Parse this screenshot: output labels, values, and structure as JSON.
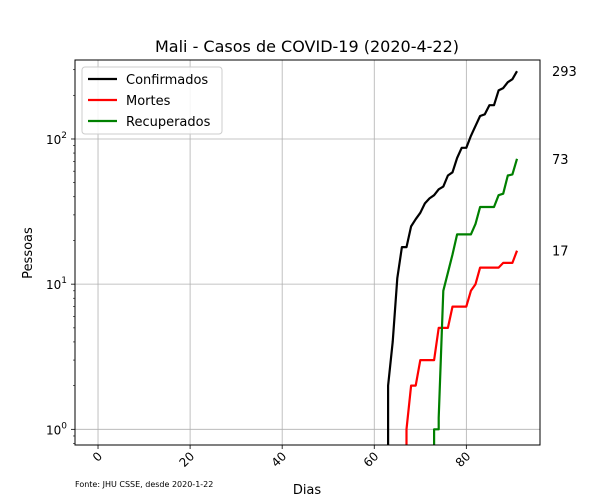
{
  "chart_data": {
    "type": "line",
    "title": "Mali - Casos de COVID-19 (2020-4-22)",
    "xlabel": "Dias",
    "ylabel": "Pessoas",
    "yscale": "log",
    "xlim": [
      -5,
      96
    ],
    "ylim": [
      0.78,
      350
    ],
    "grid": true,
    "legend_position": "top-left",
    "x_ticks": [
      0,
      20,
      40,
      60,
      80
    ],
    "y_ticks": [
      1,
      10,
      100
    ],
    "y_tick_labels": [
      {
        "base": "10",
        "exp": "0"
      },
      {
        "base": "10",
        "exp": "1"
      },
      {
        "base": "10",
        "exp": "2"
      }
    ],
    "source_note": "Fonte: JHU CSSE, desde 2020-1-22",
    "series": [
      {
        "name": "Confirmados",
        "color": "#000000",
        "final_label": "293",
        "x": [
          63,
          63,
          64,
          65,
          66,
          67,
          68,
          69,
          70,
          71,
          72,
          73,
          74,
          75,
          76,
          77,
          78,
          79,
          80,
          81,
          82,
          83,
          84,
          85,
          86,
          87,
          88,
          89,
          90,
          91
        ],
        "y": [
          0.78,
          2,
          4,
          11,
          18,
          18,
          25,
          28,
          31,
          36,
          39,
          41,
          45,
          47,
          56,
          59,
          74,
          87,
          87,
          105,
          123,
          144,
          148,
          171,
          171,
          216,
          224,
          246,
          258,
          293
        ]
      },
      {
        "name": "Mortes",
        "color": "#ff0000",
        "final_label": "17",
        "x": [
          67,
          67,
          68,
          69,
          70,
          71,
          72,
          73,
          74,
          75,
          76,
          77,
          78,
          79,
          80,
          81,
          82,
          83,
          84,
          85,
          86,
          87,
          88,
          89,
          90,
          91
        ],
        "y": [
          0.78,
          1,
          2,
          2,
          3,
          3,
          3,
          3,
          5,
          5,
          5,
          7,
          7,
          7,
          7,
          9,
          10,
          13,
          13,
          13,
          13,
          13,
          14,
          14,
          14,
          17
        ]
      },
      {
        "name": "Recuperados",
        "color": "#008000",
        "final_label": "73",
        "x": [
          73,
          73,
          74,
          74,
          75,
          76,
          77,
          78,
          79,
          80,
          81,
          82,
          83,
          84,
          85,
          86,
          87,
          88,
          89,
          90,
          91
        ],
        "y": [
          0.78,
          1,
          1,
          1.2,
          9,
          12,
          16,
          22,
          22,
          22,
          22,
          26,
          34,
          34,
          34,
          34,
          41,
          42,
          56,
          57,
          73
        ]
      }
    ]
  }
}
